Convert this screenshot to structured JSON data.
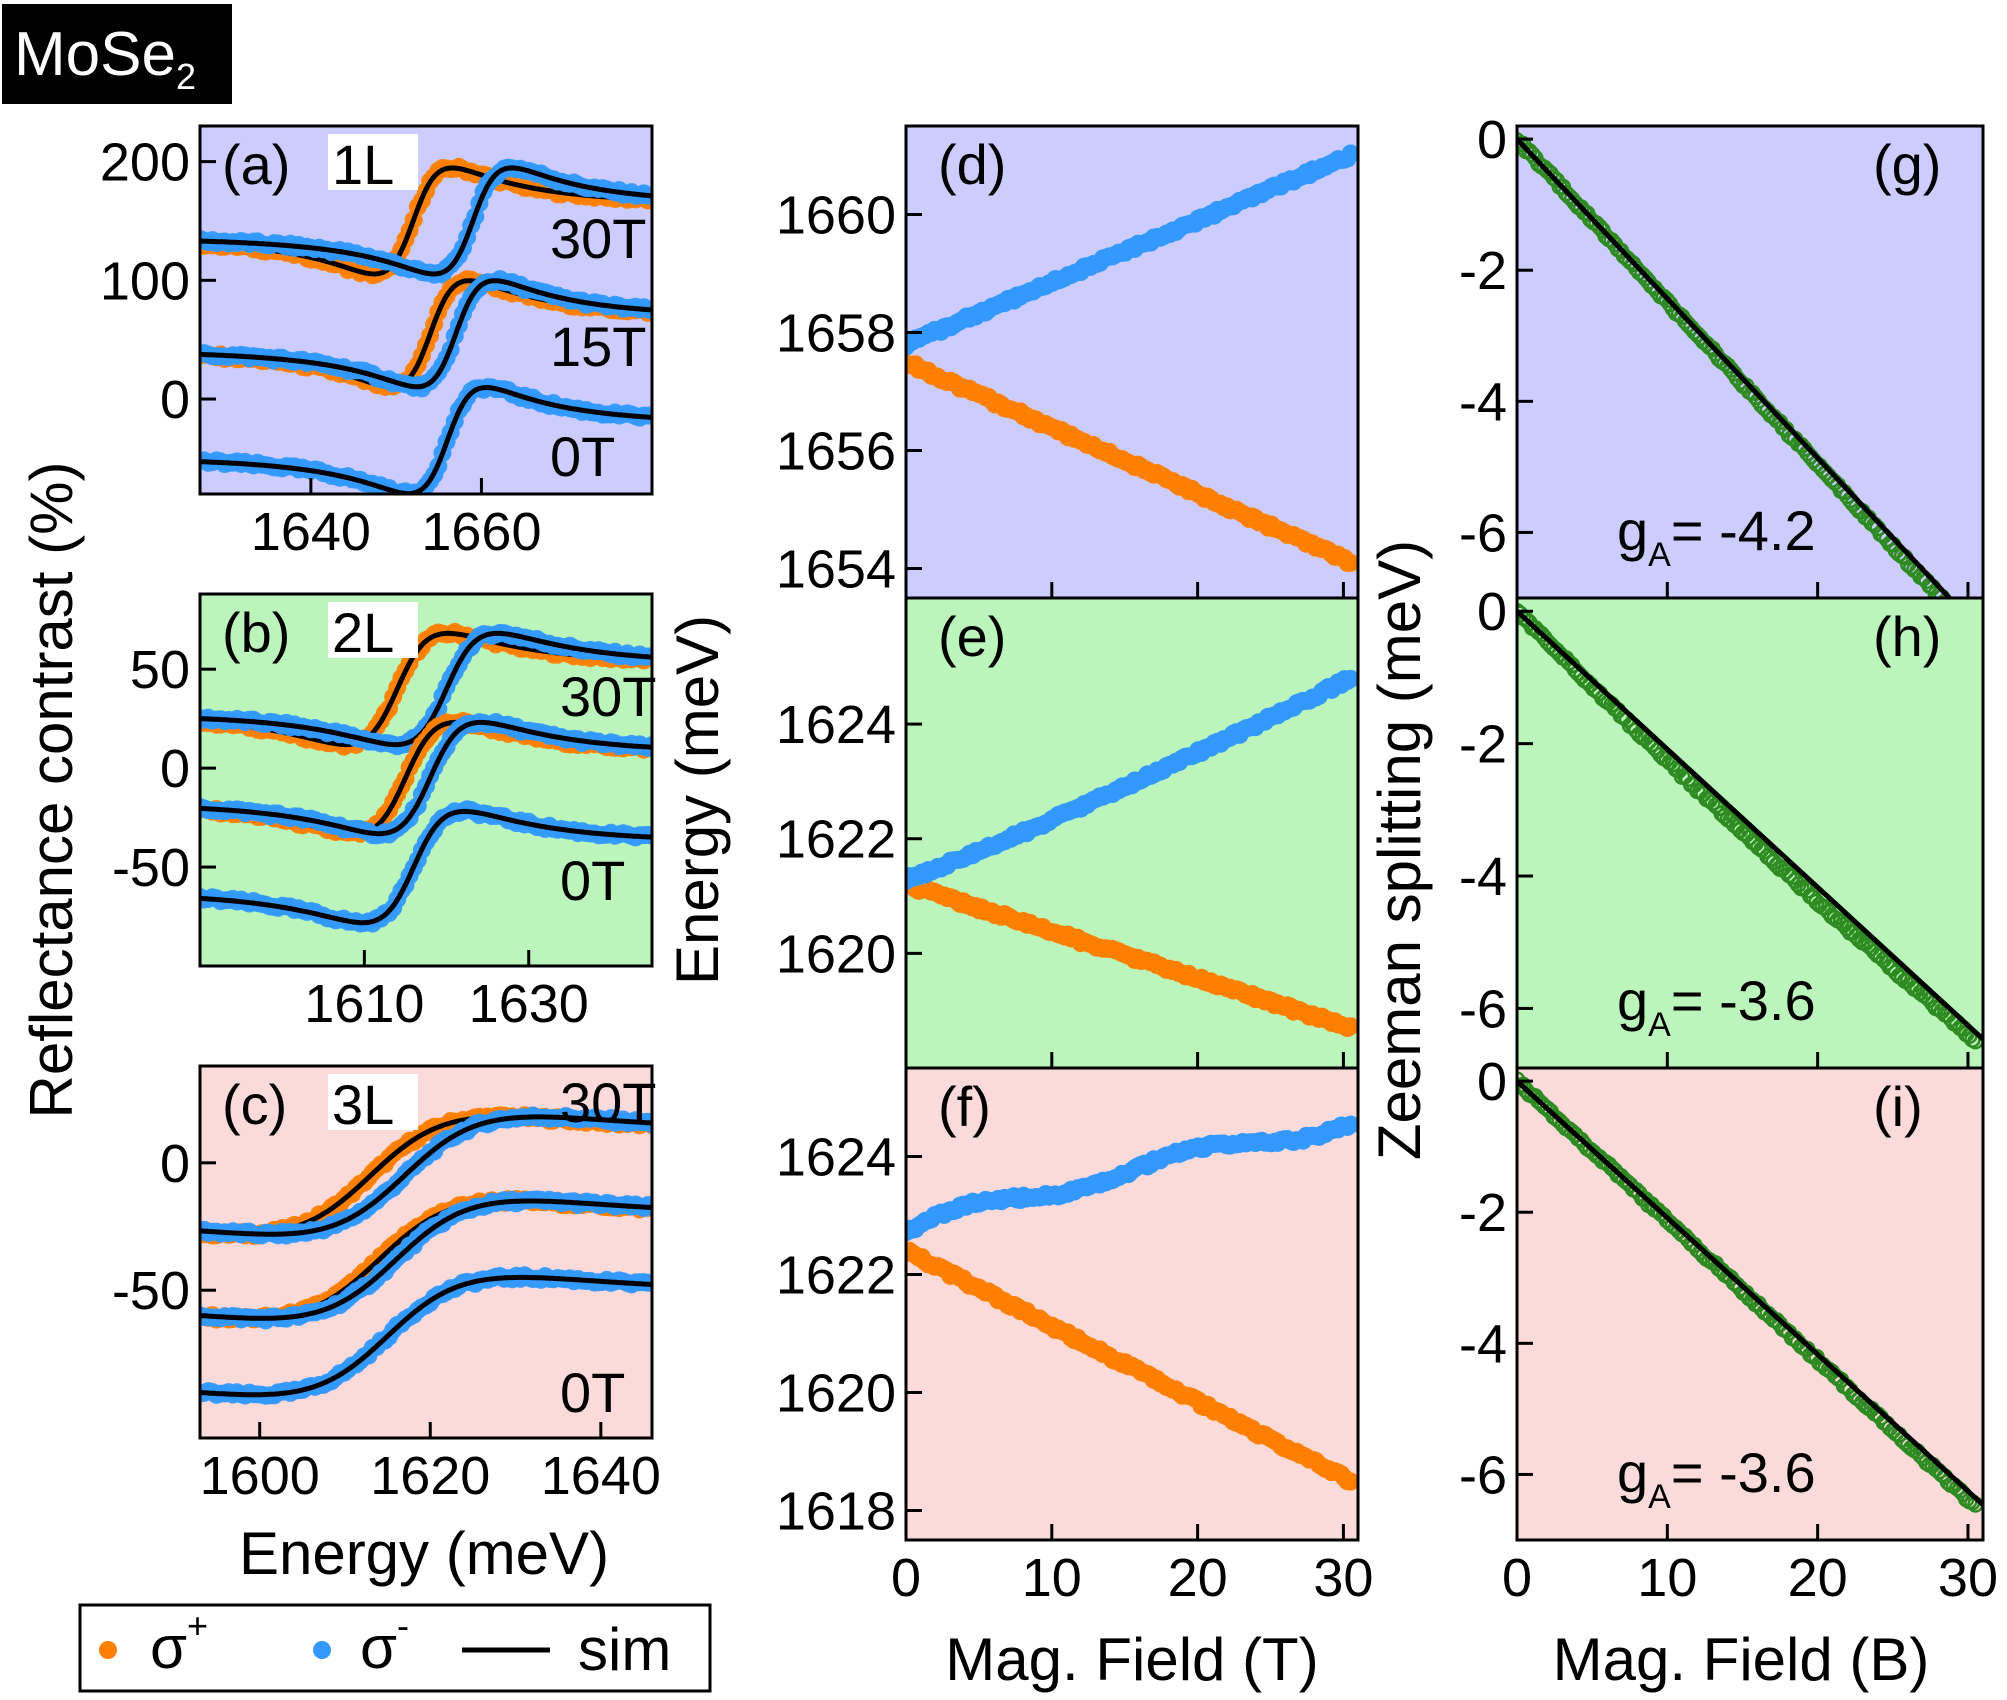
{
  "title_box": {
    "text": "MoSe",
    "sub": "2"
  },
  "colors": {
    "sigma_plus": "#ff8000",
    "sigma_minus": "#3399ff",
    "sim": "#000000",
    "zeeman": "#2e8b22",
    "bg_1L": "#ccccff",
    "bg_2L": "#bbf5bb",
    "bg_3L": "#fbdada"
  },
  "axis_labels": {
    "reflectance": "Reflectance contrast (%)",
    "energy_y": "Energy (meV)",
    "zeeman": "Zeeman splitting (meV)",
    "energy_x": "Energy (meV)",
    "field_T": "Mag. Field (T)",
    "field_B": "Mag. Field (B)"
  },
  "legend": {
    "sigma_plus": "σ",
    "sigma_plus_sup": "+",
    "sigma_minus": "σ",
    "sigma_minus_sup": "-",
    "sim": "sim"
  },
  "chart_data": [
    {
      "id": "a",
      "type": "line",
      "panel_label": "(a)",
      "layer": "1L",
      "xlabel": "Energy (meV)",
      "ylabel": "Reflectance contrast (%)",
      "xlim": [
        1627,
        1680
      ],
      "ylim": [
        -80,
        230
      ],
      "xticks": [
        1640,
        1660
      ],
      "yticks": [
        0,
        100,
        200
      ],
      "field_labels": [
        "30T",
        "15T",
        "0T"
      ],
      "series": [
        {
          "name": "30T σ+",
          "offset": 150,
          "center": 1652,
          "amp": 55,
          "width": 4.5
        },
        {
          "name": "30T σ-",
          "offset": 150,
          "center": 1659,
          "amp": 55,
          "width": 4.5
        },
        {
          "name": "15T σ+",
          "offset": 55,
          "center": 1654,
          "amp": 55,
          "width": 4.5
        },
        {
          "name": "15T σ-",
          "offset": 55,
          "center": 1657,
          "amp": 55,
          "width": 4.5
        },
        {
          "name": "0T",
          "offset": -35,
          "center": 1656,
          "amp": 55,
          "width": 4.5
        }
      ]
    },
    {
      "id": "b",
      "type": "line",
      "panel_label": "(b)",
      "layer": "2L",
      "xlabel": "Energy (meV)",
      "ylabel": "Reflectance contrast (%)",
      "xlim": [
        1590,
        1645
      ],
      "ylim": [
        -100,
        88
      ],
      "xticks": [
        1610,
        1630
      ],
      "yticks": [
        -50,
        0,
        50
      ],
      "field_labels": [
        "30T",
        "0T"
      ],
      "series": [
        {
          "name": "30T σ+",
          "offset": 40,
          "center": 1614,
          "amp": 34,
          "width": 6
        },
        {
          "name": "30T σ-",
          "offset": 40,
          "center": 1620,
          "amp": 34,
          "width": 6
        },
        {
          "name": "15T σ+",
          "offset": -5,
          "center": 1615,
          "amp": 34,
          "width": 6
        },
        {
          "name": "15T σ-",
          "offset": -5,
          "center": 1618,
          "amp": 34,
          "width": 6
        },
        {
          "name": "0T",
          "offset": -50,
          "center": 1616,
          "amp": 34,
          "width": 6
        }
      ]
    },
    {
      "id": "c",
      "type": "line",
      "panel_label": "(c)",
      "layer": "3L",
      "xlabel": "Energy (meV)",
      "ylabel": "Reflectance contrast (%)",
      "xlim": [
        1593,
        1646
      ],
      "ylim": [
        -108,
        38
      ],
      "xticks": [
        1600,
        1620,
        1640
      ],
      "yticks": [
        -50,
        0
      ],
      "field_labels": [
        "30T",
        "0T"
      ],
      "series": [
        {
          "name": "30T σ+",
          "offset": -5,
          "center": 1613,
          "amp": 26,
          "width": 14
        },
        {
          "name": "30T σ-",
          "offset": -5,
          "center": 1617,
          "amp": 26,
          "width": 14
        },
        {
          "name": "15T σ+",
          "offset": -38,
          "center": 1614,
          "amp": 26,
          "width": 14
        },
        {
          "name": "15T σ-",
          "offset": -38,
          "center": 1616,
          "amp": 26,
          "width": 14
        },
        {
          "name": "0T",
          "offset": -68,
          "center": 1615,
          "amp": 26,
          "width": 14
        }
      ]
    },
    {
      "id": "d",
      "type": "scatter",
      "panel_label": "(d)",
      "xlabel": "Mag. Field (T)",
      "ylabel": "Energy (meV)",
      "xlim": [
        0,
        31
      ],
      "ylim": [
        1653.5,
        1661.5
      ],
      "xticks": [
        0,
        10,
        20,
        30
      ],
      "yticks": [
        1654,
        1656,
        1658,
        1660
      ],
      "series": [
        {
          "name": "σ+",
          "start": 1657.5,
          "end": 1654.1
        },
        {
          "name": "σ-",
          "start": 1657.8,
          "end": 1661
        }
      ]
    },
    {
      "id": "e",
      "type": "scatter",
      "panel_label": "(e)",
      "xlabel": "Mag. Field (T)",
      "ylabel": "Energy (meV)",
      "xlim": [
        0,
        31
      ],
      "ylim": [
        1618,
        1626.2
      ],
      "xticks": [
        0,
        10,
        20,
        30
      ],
      "yticks": [
        1620,
        1622,
        1624
      ],
      "series": [
        {
          "name": "σ+",
          "start": 1621.2,
          "end": 1618.7
        },
        {
          "name": "σ-",
          "start": 1621.3,
          "end": 1624.8
        }
      ]
    },
    {
      "id": "f",
      "type": "scatter",
      "panel_label": "(f)",
      "xlabel": "Mag. Field (T)",
      "ylabel": "Energy (meV)",
      "xlim": [
        0,
        31
      ],
      "ylim": [
        1617.5,
        1625.5
      ],
      "xticks": [
        0,
        10,
        20,
        30
      ],
      "yticks": [
        1618,
        1620,
        1622,
        1624
      ],
      "series": [
        {
          "name": "σ+",
          "start": 1622.4,
          "end": 1618.5
        },
        {
          "name": "σ-",
          "start": 1622.7,
          "end": 1624.6
        }
      ]
    },
    {
      "id": "g",
      "type": "scatter",
      "panel_label": "(g)",
      "xlabel": "Mag. Field (B)",
      "ylabel": "Zeeman splitting (meV)",
      "xlim": [
        0,
        31
      ],
      "ylim": [
        -7,
        0.2
      ],
      "xticks": [
        0,
        10,
        20,
        30
      ],
      "yticks": [
        0,
        -2,
        -4,
        -6
      ],
      "fit_g": -4.2,
      "g_label": "g",
      "g_sub": "A",
      "g_value": "= -4.2",
      "slope": -0.2433
    },
    {
      "id": "h",
      "type": "scatter",
      "panel_label": "(h)",
      "xlabel": "Mag. Field (B)",
      "ylabel": "Zeeman splitting (meV)",
      "xlim": [
        0,
        31
      ],
      "ylim": [
        -6.9,
        0.2
      ],
      "xticks": [
        0,
        10,
        20,
        30
      ],
      "yticks": [
        0,
        -2,
        -4,
        -6
      ],
      "fit_g": -3.6,
      "g_label": "g",
      "g_sub": "A",
      "g_value": "= -3.6",
      "slope": -0.2085
    },
    {
      "id": "i",
      "type": "scatter",
      "panel_label": "(i)",
      "xlabel": "Mag. Field (B)",
      "ylabel": "Zeeman splitting (meV)",
      "xlim": [
        0,
        31
      ],
      "ylim": [
        -7,
        0.2
      ],
      "xticks": [
        0,
        10,
        20,
        30
      ],
      "yticks": [
        0,
        -2,
        -4,
        -6
      ],
      "fit_g": -3.6,
      "g_label": "g",
      "g_sub": "A",
      "g_value": "= -3.6",
      "slope": -0.2085
    }
  ]
}
